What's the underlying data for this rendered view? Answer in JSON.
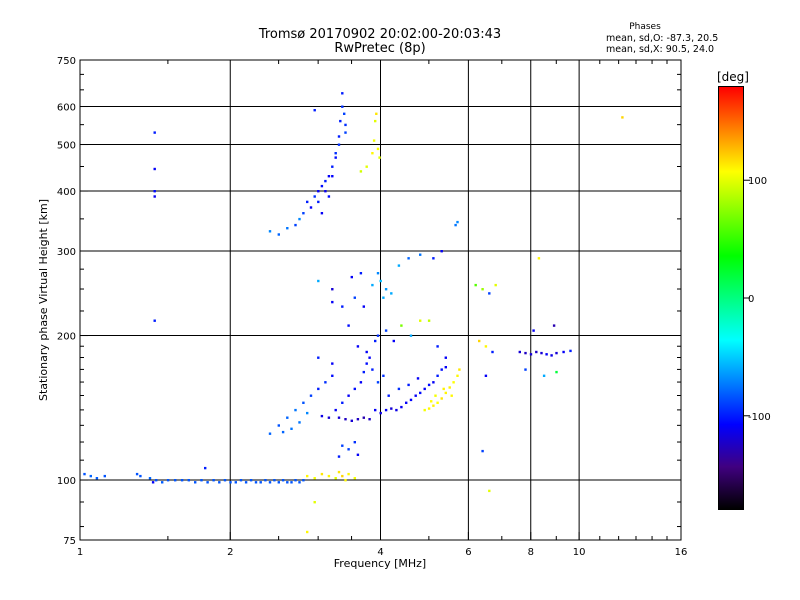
{
  "header": {
    "title_line1": "Tromsø 20170902 20:02:00-20:03:43",
    "title_line2": "RwPretec (8p)",
    "phases_heading": "Phases",
    "phases_o": "mean, sd,O: -87.3, 20.5",
    "phases_x": "mean, sd,X:  90.5, 24.0"
  },
  "colorbar": {
    "unit": "[deg]",
    "ticks": [
      {
        "label": "100",
        "value": 100
      },
      {
        "label": "0",
        "value": 0
      },
      {
        "label": "-100",
        "value": -100
      }
    ],
    "range": [
      -180,
      180
    ],
    "colors": [
      "#ff0000",
      "#ff8000",
      "#ffff00",
      "#80ff00",
      "#00ff00",
      "#00ff80",
      "#00ffff",
      "#0080ff",
      "#0000ff",
      "#400080",
      "#000000"
    ]
  },
  "chart_data": {
    "type": "scatter",
    "xlabel": "Frequency [MHz]",
    "ylabel": "Stationary phase Virtual Height [km]",
    "x_scale": "log",
    "y_scale": "log",
    "xlim": [
      1,
      16
    ],
    "ylim": [
      75,
      750
    ],
    "x_ticks": [
      {
        "v": 1,
        "label": "1"
      },
      {
        "v": 2,
        "label": "2"
      },
      {
        "v": 4,
        "label": "4"
      },
      {
        "v": 6,
        "label": "6"
      },
      {
        "v": 8,
        "label": "8"
      },
      {
        "v": 10,
        "label": "10"
      },
      {
        "v": 16,
        "label": "16"
      }
    ],
    "y_ticks": [
      {
        "v": 75,
        "label": "75"
      },
      {
        "v": 100,
        "label": "100"
      },
      {
        "v": 200,
        "label": "200"
      },
      {
        "v": 300,
        "label": "300"
      },
      {
        "v": 400,
        "label": "400"
      },
      {
        "v": 500,
        "label": "500"
      },
      {
        "v": 600,
        "label": "600"
      },
      {
        "v": 750,
        "label": "750"
      }
    ],
    "x_grid": [
      2,
      4,
      6,
      8,
      10
    ],
    "y_grid": [
      100,
      200,
      300,
      400,
      500,
      600
    ],
    "grid": true,
    "color_variable": "phase [deg]",
    "points": [
      {
        "x": 1.02,
        "y": 103,
        "phase": -85
      },
      {
        "x": 1.05,
        "y": 102,
        "phase": -80
      },
      {
        "x": 1.08,
        "y": 101,
        "phase": -82
      },
      {
        "x": 1.12,
        "y": 102,
        "phase": -85
      },
      {
        "x": 1.3,
        "y": 103,
        "phase": -85
      },
      {
        "x": 1.32,
        "y": 102,
        "phase": -85
      },
      {
        "x": 1.38,
        "y": 101,
        "phase": -80
      },
      {
        "x": 1.42,
        "y": 100,
        "phase": -85
      },
      {
        "x": 1.46,
        "y": 99,
        "phase": -82
      },
      {
        "x": 1.5,
        "y": 100,
        "phase": -84
      },
      {
        "x": 1.55,
        "y": 100,
        "phase": -84
      },
      {
        "x": 1.6,
        "y": 100,
        "phase": -84
      },
      {
        "x": 1.65,
        "y": 100,
        "phase": -84
      },
      {
        "x": 1.7,
        "y": 99,
        "phase": -84
      },
      {
        "x": 1.75,
        "y": 100,
        "phase": -84
      },
      {
        "x": 1.8,
        "y": 99,
        "phase": -84
      },
      {
        "x": 1.85,
        "y": 100,
        "phase": -84
      },
      {
        "x": 1.9,
        "y": 99,
        "phase": -84
      },
      {
        "x": 1.95,
        "y": 100,
        "phase": -84
      },
      {
        "x": 2.0,
        "y": 99,
        "phase": -84
      },
      {
        "x": 2.05,
        "y": 99,
        "phase": -84
      },
      {
        "x": 2.1,
        "y": 100,
        "phase": -84
      },
      {
        "x": 2.15,
        "y": 99,
        "phase": -84
      },
      {
        "x": 2.2,
        "y": 100,
        "phase": -84
      },
      {
        "x": 2.25,
        "y": 99,
        "phase": -84
      },
      {
        "x": 2.3,
        "y": 99,
        "phase": -84
      },
      {
        "x": 2.35,
        "y": 100,
        "phase": -84
      },
      {
        "x": 2.4,
        "y": 99,
        "phase": -84
      },
      {
        "x": 2.45,
        "y": 100,
        "phase": -84
      },
      {
        "x": 2.5,
        "y": 99,
        "phase": -84
      },
      {
        "x": 2.55,
        "y": 100,
        "phase": -84
      },
      {
        "x": 2.6,
        "y": 99,
        "phase": -84
      },
      {
        "x": 2.65,
        "y": 99,
        "phase": -84
      },
      {
        "x": 2.7,
        "y": 100,
        "phase": -84
      },
      {
        "x": 2.75,
        "y": 99,
        "phase": -84
      },
      {
        "x": 2.8,
        "y": 100,
        "phase": -84
      },
      {
        "x": 1.78,
        "y": 106,
        "phase": -100
      },
      {
        "x": 1.4,
        "y": 99,
        "phase": -110
      },
      {
        "x": 1.41,
        "y": 530,
        "phase": -100
      },
      {
        "x": 1.41,
        "y": 445,
        "phase": -110
      },
      {
        "x": 1.41,
        "y": 400,
        "phase": -105
      },
      {
        "x": 1.41,
        "y": 390,
        "phase": -112
      },
      {
        "x": 1.41,
        "y": 215,
        "phase": -100
      },
      {
        "x": 2.4,
        "y": 330,
        "phase": -70
      },
      {
        "x": 2.5,
        "y": 325,
        "phase": -80
      },
      {
        "x": 2.6,
        "y": 335,
        "phase": -75
      },
      {
        "x": 2.7,
        "y": 340,
        "phase": -90
      },
      {
        "x": 2.75,
        "y": 350,
        "phase": -70
      },
      {
        "x": 2.8,
        "y": 360,
        "phase": -90
      },
      {
        "x": 2.85,
        "y": 380,
        "phase": -100
      },
      {
        "x": 2.9,
        "y": 370,
        "phase": -110
      },
      {
        "x": 2.95,
        "y": 390,
        "phase": -95
      },
      {
        "x": 3.0,
        "y": 400,
        "phase": -110
      },
      {
        "x": 3.0,
        "y": 380,
        "phase": -100
      },
      {
        "x": 3.05,
        "y": 410,
        "phase": -105
      },
      {
        "x": 3.05,
        "y": 360,
        "phase": -110
      },
      {
        "x": 3.1,
        "y": 420,
        "phase": -100
      },
      {
        "x": 3.1,
        "y": 400,
        "phase": -112
      },
      {
        "x": 3.15,
        "y": 430,
        "phase": -110
      },
      {
        "x": 3.15,
        "y": 390,
        "phase": -105
      },
      {
        "x": 3.2,
        "y": 450,
        "phase": -100
      },
      {
        "x": 3.2,
        "y": 430,
        "phase": -108
      },
      {
        "x": 3.25,
        "y": 480,
        "phase": -95
      },
      {
        "x": 3.25,
        "y": 470,
        "phase": -105
      },
      {
        "x": 3.3,
        "y": 520,
        "phase": -100
      },
      {
        "x": 3.3,
        "y": 500,
        "phase": -95
      },
      {
        "x": 3.32,
        "y": 560,
        "phase": -100
      },
      {
        "x": 3.35,
        "y": 600,
        "phase": -95
      },
      {
        "x": 3.35,
        "y": 640,
        "phase": -100
      },
      {
        "x": 3.38,
        "y": 580,
        "phase": -90
      },
      {
        "x": 3.4,
        "y": 550,
        "phase": -95
      },
      {
        "x": 3.4,
        "y": 530,
        "phase": -90
      },
      {
        "x": 2.95,
        "y": 590,
        "phase": -100
      },
      {
        "x": 3.65,
        "y": 440,
        "phase": 95
      },
      {
        "x": 3.75,
        "y": 450,
        "phase": 100
      },
      {
        "x": 3.85,
        "y": 480,
        "phase": 110
      },
      {
        "x": 3.88,
        "y": 510,
        "phase": 105
      },
      {
        "x": 3.9,
        "y": 560,
        "phase": 100
      },
      {
        "x": 3.92,
        "y": 580,
        "phase": 115
      },
      {
        "x": 3.95,
        "y": 490,
        "phase": 108
      },
      {
        "x": 3.98,
        "y": 470,
        "phase": 100
      },
      {
        "x": 12.2,
        "y": 570,
        "phase": 120
      },
      {
        "x": 3.2,
        "y": 235,
        "phase": -110
      },
      {
        "x": 3.35,
        "y": 230,
        "phase": -100
      },
      {
        "x": 3.55,
        "y": 240,
        "phase": -90
      },
      {
        "x": 3.7,
        "y": 230,
        "phase": -110
      },
      {
        "x": 3.85,
        "y": 255,
        "phase": -60
      },
      {
        "x": 3.95,
        "y": 270,
        "phase": -70
      },
      {
        "x": 4.0,
        "y": 260,
        "phase": -55
      },
      {
        "x": 4.05,
        "y": 240,
        "phase": -60
      },
      {
        "x": 4.1,
        "y": 250,
        "phase": -65
      },
      {
        "x": 4.2,
        "y": 245,
        "phase": -60
      },
      {
        "x": 4.35,
        "y": 280,
        "phase": -60
      },
      {
        "x": 4.55,
        "y": 290,
        "phase": -80
      },
      {
        "x": 4.8,
        "y": 295,
        "phase": -75
      },
      {
        "x": 5.1,
        "y": 290,
        "phase": -100
      },
      {
        "x": 5.3,
        "y": 300,
        "phase": -110
      },
      {
        "x": 3.0,
        "y": 260,
        "phase": -60
      },
      {
        "x": 3.2,
        "y": 250,
        "phase": -120
      },
      {
        "x": 3.5,
        "y": 265,
        "phase": -110
      },
      {
        "x": 3.65,
        "y": 270,
        "phase": -100
      },
      {
        "x": 3.0,
        "y": 180,
        "phase": -100
      },
      {
        "x": 3.2,
        "y": 175,
        "phase": -110
      },
      {
        "x": 3.45,
        "y": 210,
        "phase": -105
      },
      {
        "x": 3.6,
        "y": 190,
        "phase": -110
      },
      {
        "x": 3.75,
        "y": 185,
        "phase": -110
      },
      {
        "x": 3.9,
        "y": 195,
        "phase": -100
      },
      {
        "x": 3.95,
        "y": 200,
        "phase": -95
      },
      {
        "x": 4.1,
        "y": 205,
        "phase": -90
      },
      {
        "x": 4.25,
        "y": 195,
        "phase": -110
      },
      {
        "x": 4.4,
        "y": 210,
        "phase": 70
      },
      {
        "x": 4.6,
        "y": 200,
        "phase": -60
      },
      {
        "x": 4.8,
        "y": 215,
        "phase": 100
      },
      {
        "x": 5.0,
        "y": 215,
        "phase": 90
      },
      {
        "x": 5.2,
        "y": 190,
        "phase": -100
      },
      {
        "x": 5.4,
        "y": 180,
        "phase": -110
      },
      {
        "x": 3.3,
        "y": 135,
        "phase": -120
      },
      {
        "x": 3.4,
        "y": 134,
        "phase": -125
      },
      {
        "x": 3.5,
        "y": 133,
        "phase": -120
      },
      {
        "x": 3.6,
        "y": 134,
        "phase": -125
      },
      {
        "x": 3.7,
        "y": 135,
        "phase": -130
      },
      {
        "x": 3.8,
        "y": 134,
        "phase": -125
      },
      {
        "x": 3.05,
        "y": 136,
        "phase": -115
      },
      {
        "x": 3.15,
        "y": 135,
        "phase": -120
      },
      {
        "x": 3.25,
        "y": 140,
        "phase": -110
      },
      {
        "x": 3.35,
        "y": 145,
        "phase": -100
      },
      {
        "x": 3.45,
        "y": 150,
        "phase": -110
      },
      {
        "x": 3.55,
        "y": 155,
        "phase": -105
      },
      {
        "x": 3.65,
        "y": 160,
        "phase": -110
      },
      {
        "x": 3.7,
        "y": 168,
        "phase": -100
      },
      {
        "x": 3.75,
        "y": 175,
        "phase": -105
      },
      {
        "x": 3.8,
        "y": 180,
        "phase": -110
      },
      {
        "x": 3.85,
        "y": 170,
        "phase": -100
      },
      {
        "x": 2.4,
        "y": 125,
        "phase": -80
      },
      {
        "x": 2.5,
        "y": 130,
        "phase": -85
      },
      {
        "x": 2.6,
        "y": 135,
        "phase": -80
      },
      {
        "x": 2.7,
        "y": 140,
        "phase": -75
      },
      {
        "x": 2.8,
        "y": 145,
        "phase": -85
      },
      {
        "x": 2.9,
        "y": 150,
        "phase": -90
      },
      {
        "x": 3.0,
        "y": 155,
        "phase": -100
      },
      {
        "x": 3.1,
        "y": 160,
        "phase": -95
      },
      {
        "x": 3.2,
        "y": 165,
        "phase": -105
      },
      {
        "x": 2.75,
        "y": 132,
        "phase": -75
      },
      {
        "x": 2.85,
        "y": 138,
        "phase": -70
      },
      {
        "x": 2.55,
        "y": 126,
        "phase": -80
      },
      {
        "x": 2.65,
        "y": 128,
        "phase": -75
      },
      {
        "x": 3.35,
        "y": 118,
        "phase": -90
      },
      {
        "x": 3.55,
        "y": 120,
        "phase": -95
      },
      {
        "x": 3.45,
        "y": 116,
        "phase": -90
      },
      {
        "x": 3.3,
        "y": 112,
        "phase": -100
      },
      {
        "x": 3.6,
        "y": 113,
        "phase": -110
      },
      {
        "x": 2.85,
        "y": 102,
        "phase": 110
      },
      {
        "x": 2.95,
        "y": 101,
        "phase": 105
      },
      {
        "x": 3.05,
        "y": 103,
        "phase": 115
      },
      {
        "x": 3.15,
        "y": 102,
        "phase": 110
      },
      {
        "x": 3.25,
        "y": 101,
        "phase": 100
      },
      {
        "x": 3.35,
        "y": 102,
        "phase": 120
      },
      {
        "x": 3.45,
        "y": 103,
        "phase": 110
      },
      {
        "x": 3.55,
        "y": 101,
        "phase": 105
      },
      {
        "x": 3.3,
        "y": 104,
        "phase": 115
      },
      {
        "x": 3.4,
        "y": 100,
        "phase": 110
      },
      {
        "x": 2.95,
        "y": 90,
        "phase": 100
      },
      {
        "x": 2.85,
        "y": 78,
        "phase": 110
      },
      {
        "x": 3.9,
        "y": 140,
        "phase": -110
      },
      {
        "x": 4.0,
        "y": 138,
        "phase": -115
      },
      {
        "x": 4.1,
        "y": 140,
        "phase": -110
      },
      {
        "x": 4.2,
        "y": 141,
        "phase": -120
      },
      {
        "x": 4.3,
        "y": 140,
        "phase": -115
      },
      {
        "x": 4.4,
        "y": 142,
        "phase": -112
      },
      {
        "x": 4.5,
        "y": 145,
        "phase": -110
      },
      {
        "x": 4.6,
        "y": 147,
        "phase": -108
      },
      {
        "x": 4.7,
        "y": 150,
        "phase": -110
      },
      {
        "x": 4.8,
        "y": 152,
        "phase": -105
      },
      {
        "x": 4.9,
        "y": 155,
        "phase": -110
      },
      {
        "x": 5.0,
        "y": 158,
        "phase": -105
      },
      {
        "x": 5.1,
        "y": 160,
        "phase": -110
      },
      {
        "x": 5.2,
        "y": 165,
        "phase": -100
      },
      {
        "x": 5.3,
        "y": 170,
        "phase": -105
      },
      {
        "x": 5.4,
        "y": 172,
        "phase": -110
      },
      {
        "x": 4.15,
        "y": 150,
        "phase": -100
      },
      {
        "x": 4.35,
        "y": 155,
        "phase": -95
      },
      {
        "x": 4.55,
        "y": 158,
        "phase": -100
      },
      {
        "x": 4.75,
        "y": 163,
        "phase": -110
      },
      {
        "x": 3.95,
        "y": 160,
        "phase": -90
      },
      {
        "x": 4.05,
        "y": 165,
        "phase": -95
      },
      {
        "x": 4.9,
        "y": 140,
        "phase": 105
      },
      {
        "x": 5.0,
        "y": 141,
        "phase": 110
      },
      {
        "x": 5.1,
        "y": 143,
        "phase": 112
      },
      {
        "x": 5.2,
        "y": 145,
        "phase": 108
      },
      {
        "x": 5.3,
        "y": 148,
        "phase": 115
      },
      {
        "x": 5.4,
        "y": 152,
        "phase": 110
      },
      {
        "x": 5.5,
        "y": 156,
        "phase": 112
      },
      {
        "x": 5.6,
        "y": 160,
        "phase": 108
      },
      {
        "x": 5.7,
        "y": 165,
        "phase": 110
      },
      {
        "x": 5.75,
        "y": 170,
        "phase": 115
      },
      {
        "x": 5.15,
        "y": 150,
        "phase": 105
      },
      {
        "x": 5.35,
        "y": 155,
        "phase": 112
      },
      {
        "x": 5.55,
        "y": 150,
        "phase": 110
      },
      {
        "x": 5.05,
        "y": 146,
        "phase": 108
      },
      {
        "x": 5.7,
        "y": 345,
        "phase": -70
      },
      {
        "x": 5.65,
        "y": 340,
        "phase": -75
      },
      {
        "x": 6.2,
        "y": 255,
        "phase": 60
      },
      {
        "x": 6.4,
        "y": 250,
        "phase": 80
      },
      {
        "x": 6.6,
        "y": 245,
        "phase": -90
      },
      {
        "x": 6.8,
        "y": 255,
        "phase": 100
      },
      {
        "x": 6.3,
        "y": 195,
        "phase": 120
      },
      {
        "x": 6.5,
        "y": 190,
        "phase": 110
      },
      {
        "x": 6.7,
        "y": 185,
        "phase": -100
      },
      {
        "x": 6.5,
        "y": 165,
        "phase": -110
      },
      {
        "x": 6.6,
        "y": 95,
        "phase": 100
      },
      {
        "x": 6.4,
        "y": 115,
        "phase": -90
      },
      {
        "x": 7.6,
        "y": 185,
        "phase": -120
      },
      {
        "x": 7.8,
        "y": 184,
        "phase": -125
      },
      {
        "x": 8.0,
        "y": 183,
        "phase": -120
      },
      {
        "x": 8.2,
        "y": 185,
        "phase": -125
      },
      {
        "x": 8.4,
        "y": 184,
        "phase": -120
      },
      {
        "x": 8.6,
        "y": 183,
        "phase": -110
      },
      {
        "x": 8.8,
        "y": 182,
        "phase": -115
      },
      {
        "x": 9.0,
        "y": 184,
        "phase": -120
      },
      {
        "x": 9.3,
        "y": 185,
        "phase": -110
      },
      {
        "x": 9.6,
        "y": 186,
        "phase": -100
      },
      {
        "x": 8.1,
        "y": 205,
        "phase": -110
      },
      {
        "x": 8.3,
        "y": 290,
        "phase": 110
      },
      {
        "x": 8.9,
        "y": 210,
        "phase": -130
      },
      {
        "x": 7.8,
        "y": 170,
        "phase": -90
      },
      {
        "x": 8.5,
        "y": 165,
        "phase": -60
      },
      {
        "x": 9.0,
        "y": 168,
        "phase": 20
      }
    ]
  }
}
